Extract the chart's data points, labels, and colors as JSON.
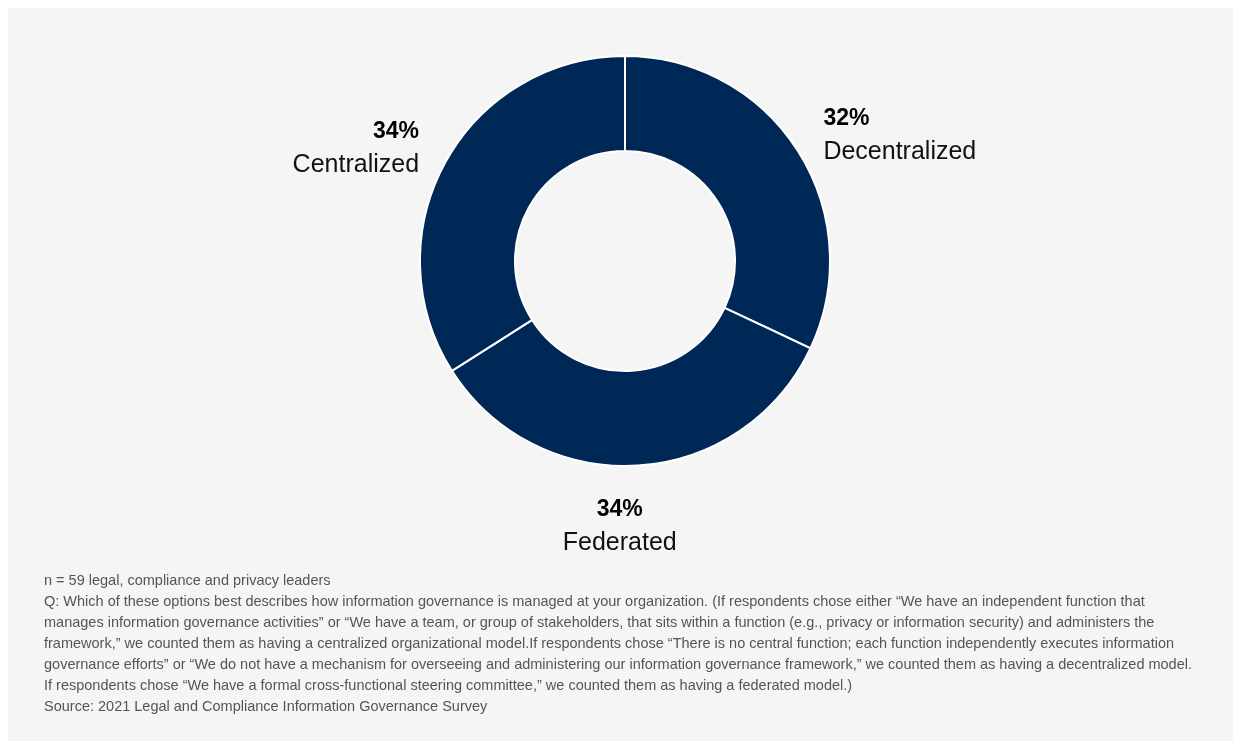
{
  "chart_data": {
    "type": "donut",
    "categories": [
      "Decentralized",
      "Federated",
      "Centralized"
    ],
    "values": [
      32,
      34,
      34
    ],
    "colors": [
      "#002856",
      "#002856",
      "#002856"
    ],
    "value_labels": [
      "32%",
      "34%",
      "34%"
    ],
    "annotations": [
      "n = 59 legal, compliance and privacy leaders",
      "Q: Which of these options best describes how information governance is managed at your organization. (If respondents chose either “We have an independent function that manages information governance activities” or “We have a team, or group of stakeholders, that sits within a function (e.g., privacy or information security) and administers the framework,” we counted them as having a centralized organizational model.If respondents chose “There is no central function; each function independently executes information governance efforts” or “We do not have a mechanism for overseeing and administering our information governance framework,” we counted them as having a decentralized model.",
      "If respondents chose “We have a formal cross-functional steering committee,” we counted them as having a federated model.)",
      "Source: 2021 Legal and Compliance Information Governance Survey"
    ]
  }
}
